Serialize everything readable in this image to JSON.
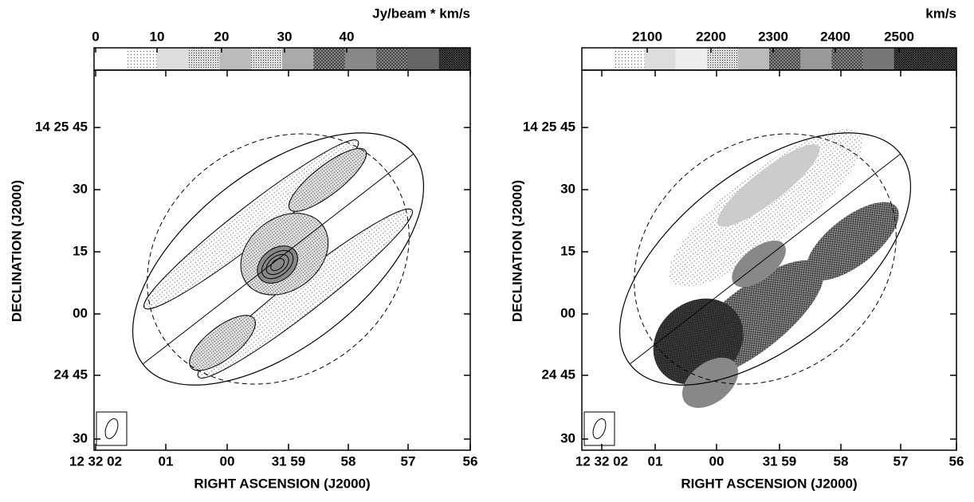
{
  "panels": [
    {
      "colorbar": {
        "unit": "Jy/beam * km/s",
        "ticks": [
          "0",
          "10",
          "20",
          "30",
          "40"
        ]
      },
      "y_ticks": [
        "14 25 45",
        "30",
        "15",
        "00",
        "24 45",
        "30"
      ],
      "x_ticks": [
        "12 32 02",
        "01",
        "00",
        "31 59",
        "58",
        "57",
        "56"
      ],
      "x_label": "RIGHT ASCENSION (J2000)",
      "y_label": "DECLINATION (J2000)"
    },
    {
      "colorbar": {
        "unit": "km/s",
        "ticks": [
          "2100",
          "2200",
          "2300",
          "2400",
          "2500"
        ]
      },
      "y_ticks": [
        "14 25 45",
        "30",
        "15",
        "00",
        "24 45",
        "30"
      ],
      "x_ticks": [
        "12 32 02",
        "01",
        "00",
        "31 59",
        "58",
        "57",
        "56"
      ],
      "x_label": "RIGHT ASCENSION (J2000)",
      "y_label": "DECLINATION (J2000)"
    }
  ]
}
